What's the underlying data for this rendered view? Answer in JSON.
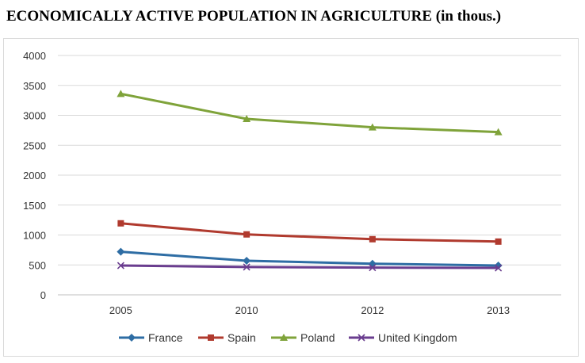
{
  "chart_data": {
    "type": "line",
    "title": "ECONOMICALLY ACTIVE POPULATION IN AGRICULTURE (in thous.)",
    "categories": [
      "2005",
      "2010",
      "2012",
      "2013"
    ],
    "ylim": [
      0,
      4000
    ],
    "yticks": [
      0,
      500,
      1000,
      1500,
      2000,
      2500,
      3000,
      3500,
      4000
    ],
    "grid": true,
    "legend_position": "bottom",
    "series": [
      {
        "name": "France",
        "values": [
          720,
          570,
          520,
          490
        ],
        "color": "#2e6da4",
        "marker": "diamond"
      },
      {
        "name": "Spain",
        "values": [
          1195,
          1010,
          930,
          890
        ],
        "color": "#b03a2e",
        "marker": "square"
      },
      {
        "name": "Poland",
        "values": [
          3360,
          2940,
          2800,
          2720
        ],
        "color": "#7fa33a",
        "marker": "triangle"
      },
      {
        "name": "United Kingdom",
        "values": [
          490,
          465,
          455,
          450
        ],
        "color": "#6a3d8f",
        "marker": "x"
      }
    ]
  }
}
